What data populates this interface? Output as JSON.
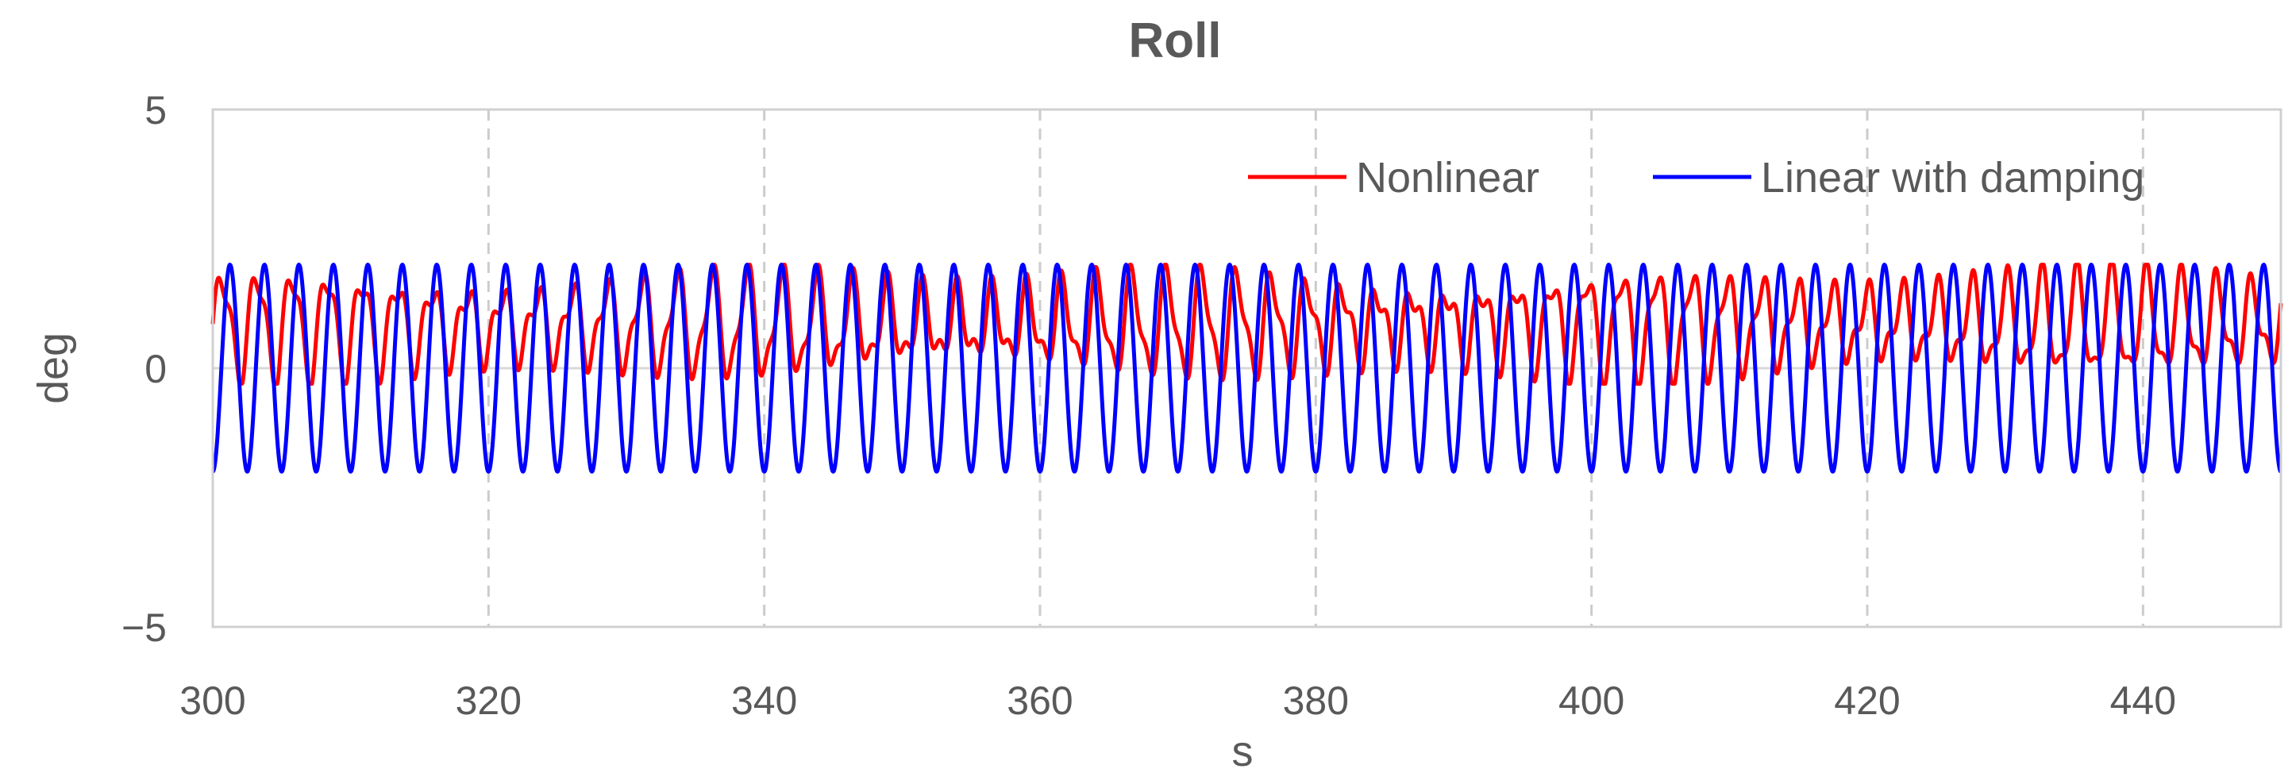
{
  "chart_data": {
    "type": "line",
    "title": "Roll",
    "xlabel": "s",
    "ylabel": "deg",
    "xlim": [
      300,
      450
    ],
    "ylim": [
      -5,
      5
    ],
    "xticks": [
      300,
      320,
      340,
      360,
      380,
      400,
      420,
      440
    ],
    "xtick_labels": [
      "300",
      "320",
      "340",
      "360",
      "380",
      "400",
      "420",
      "440"
    ],
    "yticks": [
      -5,
      0,
      5
    ],
    "ytick_labels": [
      "−5",
      "0",
      "5"
    ],
    "grid": "vertical dashed",
    "legend_position": "top-right",
    "series": [
      {
        "name": "Nonlinear",
        "color": "#ff0000",
        "description": "periodic roll response oscillating between about -0.3 and 2.0 deg",
        "period_s": 2.5,
        "mean": 0.85,
        "amplitude_range": [
          -0.3,
          2.0
        ]
      },
      {
        "name": "Linear with damping",
        "color": "#0000ff",
        "description": "sinusoidal roll response between -2.0 and 2.0 deg",
        "period_s": 2.5,
        "mean": 0.0,
        "amplitude_range": [
          -2.0,
          2.0
        ]
      }
    ]
  }
}
